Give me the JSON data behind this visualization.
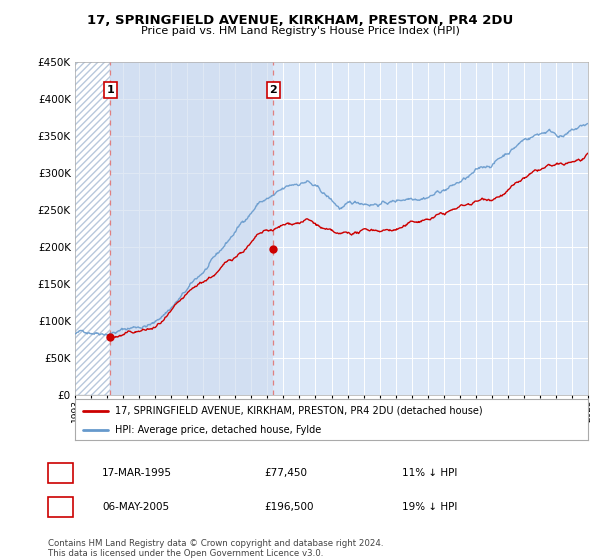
{
  "title": "17, SPRINGFIELD AVENUE, KIRKHAM, PRESTON, PR4 2DU",
  "subtitle": "Price paid vs. HM Land Registry's House Price Index (HPI)",
  "legend_line1": "17, SPRINGFIELD AVENUE, KIRKHAM, PRESTON, PR4 2DU (detached house)",
  "legend_line2": "HPI: Average price, detached house, Fylde",
  "sale1_date": "17-MAR-1995",
  "sale1_price": 77450,
  "sale1_label": "1",
  "sale1_note": "11% ↓ HPI",
  "sale2_date": "06-MAY-2005",
  "sale2_price": 196500,
  "sale2_label": "2",
  "sale2_note": "19% ↓ HPI",
  "footer": "Contains HM Land Registry data © Crown copyright and database right 2024.\nThis data is licensed under the Open Government Licence v3.0.",
  "hatch_color": "#b8c8dc",
  "plot_bg_color": "#dce8f8",
  "between_sales_bg": "#ccdaee",
  "red_line_color": "#cc0000",
  "blue_line_color": "#6699cc",
  "grid_color": "#ffffff",
  "sale_marker_color": "#cc0000",
  "dashed_line_color": "#e08080",
  "ylim": [
    0,
    450000
  ],
  "yticks": [
    0,
    50000,
    100000,
    150000,
    200000,
    250000,
    300000,
    350000,
    400000,
    450000
  ],
  "xstart_year": 1993,
  "xend_year": 2025,
  "sale1_t": 1995.21,
  "sale2_t": 2005.37
}
